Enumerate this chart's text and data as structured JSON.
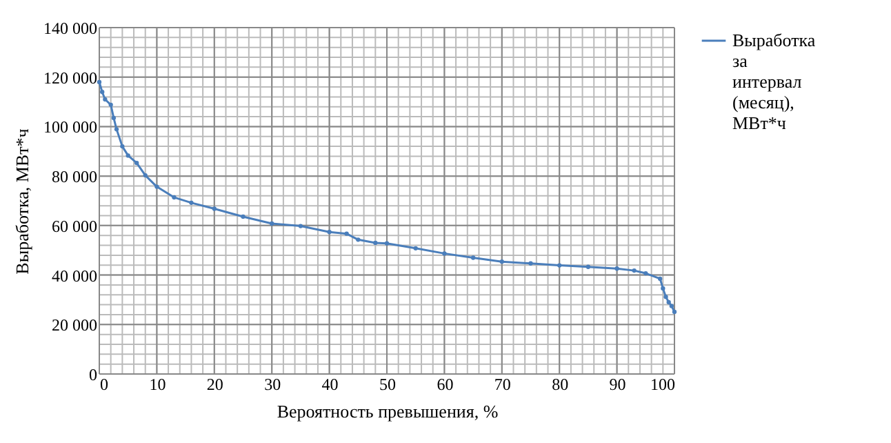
{
  "chart_data": {
    "type": "line",
    "xlabel": "Вероятность превышения, %",
    "ylabel": "Выработка, МВт*ч",
    "x": [
      0,
      0.5,
      1,
      2,
      2.5,
      3,
      4,
      5,
      6.5,
      8,
      10,
      13,
      16,
      20,
      25,
      30,
      35,
      40,
      43,
      45,
      48,
      50,
      55,
      60,
      65,
      70,
      75,
      80,
      85,
      90,
      93,
      95,
      97.5,
      98,
      98.5,
      99,
      99.5,
      100
    ],
    "series": [
      {
        "name": "Выработка за интервал (месяц), МВт*ч",
        "color": "#4a7ebb",
        "values": [
          118000,
          114000,
          111000,
          108800,
          103500,
          98900,
          92000,
          88300,
          85300,
          80300,
          75700,
          71400,
          69200,
          66800,
          63600,
          60800,
          59800,
          57400,
          56700,
          54300,
          53000,
          52800,
          50800,
          48700,
          47000,
          45400,
          44700,
          43900,
          43300,
          42600,
          41800,
          40700,
          38500,
          34600,
          31200,
          29000,
          27500,
          25100
        ]
      }
    ],
    "xlim": [
      0,
      100
    ],
    "xticks": [
      0,
      10,
      20,
      30,
      40,
      50,
      60,
      70,
      80,
      90,
      100
    ],
    "ylim": [
      0,
      140000
    ],
    "yticks": [
      0,
      {
        "value": 20000,
        "label": "20 000"
      },
      {
        "value": 40000,
        "label": "40 000"
      },
      {
        "value": 60000,
        "label": "60 000"
      },
      {
        "value": 80000,
        "label": "80 000"
      },
      {
        "value": 100000,
        "label": "100 000"
      },
      {
        "value": 120000,
        "label": "120 000"
      },
      {
        "value": 140000,
        "label": "140 000"
      }
    ],
    "grid": true,
    "legend": "right",
    "marker": "circle",
    "line_style": "solid"
  }
}
